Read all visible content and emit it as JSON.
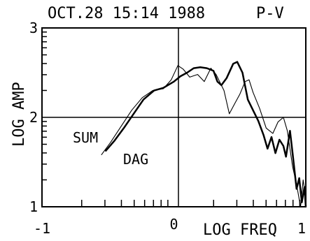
{
  "chart_data": {
    "type": "line",
    "title": "OCT.28 15:14 1988",
    "subtitle": "P-V",
    "xlabel": "LOG FREQ",
    "ylabel": "LOG AMP",
    "xlim": [
      -1,
      1
    ],
    "ylim": [
      1,
      3
    ],
    "xtick_labels": [
      {
        "value": -1,
        "label": "-1"
      },
      {
        "value": 0,
        "label": "0"
      },
      {
        "value": 1,
        "label": "1"
      }
    ],
    "ytick_labels": [
      {
        "value": 1,
        "label": "1"
      },
      {
        "value": 2,
        "label": "2"
      },
      {
        "value": 3,
        "label": "3"
      }
    ],
    "reference_lines": {
      "x": 0,
      "y": 2
    },
    "series": [
      {
        "name": "SUM",
        "points": [
          [
            -0.52,
            1.62
          ],
          [
            -0.45,
            1.74
          ],
          [
            -0.38,
            1.88
          ],
          [
            -0.3,
            2.05
          ],
          [
            -0.23,
            2.2
          ],
          [
            -0.15,
            2.3
          ],
          [
            -0.08,
            2.33
          ],
          [
            0.0,
            2.4
          ],
          [
            0.05,
            2.46
          ],
          [
            0.1,
            2.5
          ],
          [
            0.15,
            2.55
          ],
          [
            0.2,
            2.56
          ],
          [
            0.25,
            2.55
          ],
          [
            0.3,
            2.52
          ],
          [
            0.33,
            2.4
          ],
          [
            0.36,
            2.36
          ],
          [
            0.4,
            2.44
          ],
          [
            0.45,
            2.6
          ],
          [
            0.48,
            2.62
          ],
          [
            0.52,
            2.5
          ],
          [
            0.56,
            2.2
          ],
          [
            0.6,
            2.08
          ],
          [
            0.64,
            1.96
          ],
          [
            0.68,
            1.8
          ],
          [
            0.71,
            1.65
          ],
          [
            0.74,
            1.78
          ],
          [
            0.77,
            1.6
          ],
          [
            0.8,
            1.75
          ],
          [
            0.83,
            1.68
          ],
          [
            0.85,
            1.56
          ],
          [
            0.88,
            1.85
          ],
          [
            0.9,
            1.6
          ],
          [
            0.93,
            1.2
          ],
          [
            0.95,
            1.32
          ],
          [
            0.97,
            1.05
          ],
          [
            0.99,
            1.22
          ],
          [
            1.0,
            1.0
          ]
        ]
      },
      {
        "name": "DAG",
        "points": [
          [
            -0.55,
            1.58
          ],
          [
            -0.48,
            1.72
          ],
          [
            -0.4,
            1.9
          ],
          [
            -0.32,
            2.08
          ],
          [
            -0.24,
            2.22
          ],
          [
            -0.16,
            2.3
          ],
          [
            -0.08,
            2.32
          ],
          [
            -0.02,
            2.42
          ],
          [
            0.03,
            2.58
          ],
          [
            0.07,
            2.54
          ],
          [
            0.12,
            2.45
          ],
          [
            0.18,
            2.48
          ],
          [
            0.23,
            2.4
          ],
          [
            0.28,
            2.55
          ],
          [
            0.32,
            2.48
          ],
          [
            0.38,
            2.3
          ],
          [
            0.42,
            2.04
          ],
          [
            0.46,
            2.15
          ],
          [
            0.5,
            2.26
          ],
          [
            0.54,
            2.4
          ],
          [
            0.57,
            2.42
          ],
          [
            0.6,
            2.28
          ],
          [
            0.65,
            2.1
          ],
          [
            0.7,
            1.88
          ],
          [
            0.75,
            1.82
          ],
          [
            0.79,
            1.95
          ],
          [
            0.83,
            2.0
          ],
          [
            0.86,
            1.85
          ],
          [
            0.9,
            1.45
          ],
          [
            0.93,
            1.25
          ],
          [
            0.96,
            1.0
          ],
          [
            0.98,
            1.3
          ],
          [
            1.0,
            1.1
          ]
        ]
      }
    ]
  }
}
